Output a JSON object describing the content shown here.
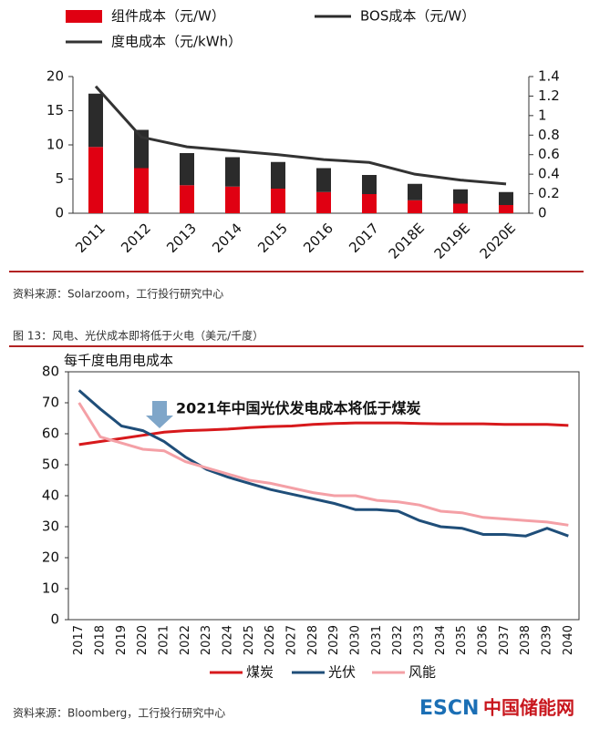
{
  "chart_data": [
    {
      "type": "bar",
      "stacked": true,
      "categories": [
        "2011",
        "2012",
        "2013",
        "2014",
        "2015",
        "2016",
        "2017",
        "2018E",
        "2019E",
        "2020E"
      ],
      "series": [
        {
          "name": "组件成本（元/W）",
          "color": "#e00012",
          "values": [
            9.7,
            6.6,
            4.1,
            3.9,
            3.6,
            3.1,
            2.8,
            1.9,
            1.4,
            1.2
          ]
        },
        {
          "name": "BOS成本（元/W）",
          "color": "#2b2b2b",
          "values": [
            7.8,
            5.6,
            4.7,
            4.3,
            3.9,
            3.5,
            2.8,
            2.4,
            2.1,
            1.9
          ]
        },
        {
          "name": "度电成本（元/kWh）",
          "type": "line",
          "axis": "y2",
          "color": "#333333",
          "values": [
            1.3,
            0.78,
            0.68,
            0.64,
            0.6,
            0.55,
            0.52,
            0.4,
            0.34,
            0.3
          ]
        }
      ],
      "ylim": [
        0,
        20
      ],
      "yticks": [
        0,
        5,
        10,
        15,
        20
      ],
      "y2lim": [
        0,
        1.4
      ],
      "y2ticks": [
        0,
        0.2,
        0.4,
        0.6,
        0.8,
        1,
        1.2,
        1.4
      ]
    },
    {
      "type": "line",
      "y_label": "每千度电用电成本",
      "annotation": "2021年中国光伏发电成本将低于煤炭",
      "categories": [
        "2017",
        "2018",
        "2019",
        "2020",
        "2021",
        "2022",
        "2023",
        "2024",
        "2025",
        "2026",
        "2027",
        "2028",
        "2029",
        "2030",
        "2031",
        "2032",
        "2033",
        "2034",
        "2035",
        "2036",
        "2037",
        "2038",
        "2039",
        "2040"
      ],
      "series": [
        {
          "name": "煤炭",
          "color": "#d7191c",
          "values": [
            56.5,
            57.5,
            58.5,
            59.5,
            60.5,
            61,
            61.2,
            61.5,
            62,
            62.3,
            62.5,
            63,
            63.3,
            63.5,
            63.5,
            63.5,
            63.3,
            63.2,
            63.2,
            63.2,
            63,
            63,
            63,
            62.7
          ]
        },
        {
          "name": "光伏",
          "color": "#1f4e79",
          "values": [
            74,
            68,
            62.5,
            61,
            57.5,
            52.5,
            48.5,
            46,
            44,
            42,
            40.5,
            39,
            37.5,
            35.5,
            35.5,
            35,
            32,
            30,
            29.5,
            27.5,
            27.5,
            27,
            29.5,
            27
          ]
        },
        {
          "name": "风能",
          "color": "#f4a0a6",
          "values": [
            70,
            59,
            57,
            55,
            54.5,
            51,
            49,
            47,
            45,
            44,
            42.5,
            41,
            40,
            40,
            38.5,
            38,
            37,
            35,
            34.5,
            33,
            32.5,
            32,
            31.5,
            30.5
          ]
        }
      ],
      "ylim": [
        0,
        80
      ],
      "yticks": [
        0,
        10,
        20,
        30,
        40,
        50,
        60,
        70,
        80
      ]
    }
  ],
  "source_1": "资料来源：Solarzoom，工行投行研究中心",
  "figure_caption": "图 13：风电、光伏成本即将低于火电（美元/千度）",
  "source_2": "资料来源：Bloomberg，工行投行研究中心",
  "watermark": {
    "brand": "ESCN",
    "name": "中国储能网"
  }
}
